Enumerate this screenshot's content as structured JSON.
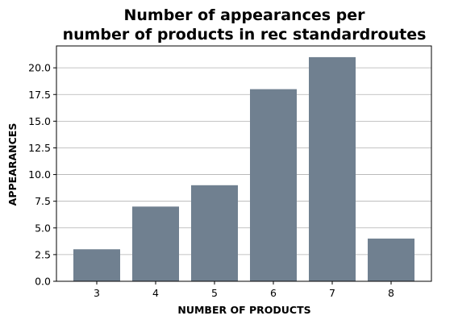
{
  "chart_data": {
    "type": "bar",
    "title": "Number of appearances per\nnumber of products in rec standardroutes",
    "title_lines": [
      "Number of appearances per",
      "number of products in rec standardroutes"
    ],
    "xlabel": "NUMBER OF PRODUCTS",
    "ylabel": "APPEARANCES",
    "categories": [
      "3",
      "4",
      "5",
      "6",
      "7",
      "8"
    ],
    "values": [
      3,
      7,
      9,
      18,
      21,
      4
    ],
    "ylim": [
      0,
      22.05
    ],
    "yticks": [
      0.0,
      2.5,
      5.0,
      7.5,
      10.0,
      12.5,
      15.0,
      17.5,
      20.0
    ],
    "ytick_labels": [
      "0.0",
      "2.5",
      "5.0",
      "7.5",
      "10.0",
      "12.5",
      "15.0",
      "17.5",
      "20.0"
    ],
    "grid": "horizontal",
    "legend": "none",
    "bar_color": "#708090",
    "grid_color": "#b0b0b0"
  }
}
